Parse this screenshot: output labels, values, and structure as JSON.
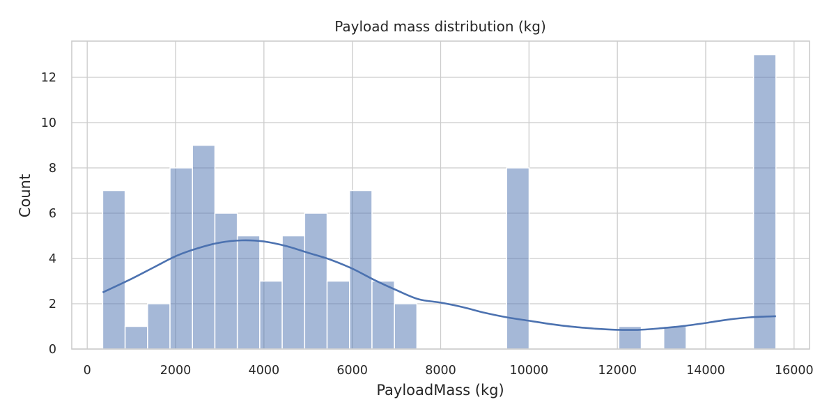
{
  "chart_data": {
    "type": "bar",
    "subtype": "histogram-with-kde",
    "title": "Payload mass distribution (kg)",
    "xlabel": "PayloadMass (kg)",
    "ylabel": "Count",
    "xlim": [
      -350,
      16350
    ],
    "ylim": [
      0,
      13.6
    ],
    "xticks": [
      0,
      2000,
      4000,
      6000,
      8000,
      10000,
      12000,
      14000,
      16000
    ],
    "yticks": [
      0,
      2,
      4,
      6,
      8,
      10,
      12
    ],
    "grid": true,
    "color": "#4c72b0",
    "bin_width": 508,
    "bins": [
      {
        "x0": 350,
        "x1": 858,
        "count": 7
      },
      {
        "x0": 858,
        "x1": 1366,
        "count": 1
      },
      {
        "x0": 1366,
        "x1": 1874,
        "count": 2
      },
      {
        "x0": 1874,
        "x1": 2382,
        "count": 8
      },
      {
        "x0": 2382,
        "x1": 2890,
        "count": 9
      },
      {
        "x0": 2890,
        "x1": 3398,
        "count": 6
      },
      {
        "x0": 3398,
        "x1": 3906,
        "count": 5
      },
      {
        "x0": 3906,
        "x1": 4414,
        "count": 3
      },
      {
        "x0": 4414,
        "x1": 4922,
        "count": 5
      },
      {
        "x0": 4922,
        "x1": 5430,
        "count": 6
      },
      {
        "x0": 5430,
        "x1": 5938,
        "count": 3
      },
      {
        "x0": 5938,
        "x1": 6446,
        "count": 7
      },
      {
        "x0": 6446,
        "x1": 6954,
        "count": 3
      },
      {
        "x0": 6954,
        "x1": 7462,
        "count": 2
      },
      {
        "x0": 7462,
        "x1": 7970,
        "count": 0
      },
      {
        "x0": 7970,
        "x1": 8478,
        "count": 0
      },
      {
        "x0": 8478,
        "x1": 8986,
        "count": 0
      },
      {
        "x0": 8986,
        "x1": 9494,
        "count": 0
      },
      {
        "x0": 9494,
        "x1": 10002,
        "count": 8
      },
      {
        "x0": 10002,
        "x1": 10510,
        "count": 0
      },
      {
        "x0": 10510,
        "x1": 11018,
        "count": 0
      },
      {
        "x0": 11018,
        "x1": 11526,
        "count": 0
      },
      {
        "x0": 11526,
        "x1": 12034,
        "count": 0
      },
      {
        "x0": 12034,
        "x1": 12542,
        "count": 1
      },
      {
        "x0": 12542,
        "x1": 13050,
        "count": 0
      },
      {
        "x0": 13050,
        "x1": 13558,
        "count": 1
      },
      {
        "x0": 13558,
        "x1": 14066,
        "count": 0
      },
      {
        "x0": 14066,
        "x1": 14574,
        "count": 0
      },
      {
        "x0": 14574,
        "x1": 15082,
        "count": 0
      },
      {
        "x0": 15082,
        "x1": 15590,
        "count": 13
      }
    ],
    "kde": {
      "x": [
        350,
        1000,
        1500,
        2000,
        2500,
        3000,
        3500,
        4000,
        4500,
        5000,
        5500,
        6000,
        6500,
        7000,
        7500,
        8000,
        8500,
        9000,
        9500,
        10000,
        10500,
        11000,
        11500,
        12000,
        12500,
        13000,
        13500,
        14000,
        14500,
        15000,
        15590
      ],
      "y": [
        2.5,
        3.1,
        3.6,
        4.1,
        4.45,
        4.7,
        4.8,
        4.75,
        4.55,
        4.25,
        3.95,
        3.55,
        3.05,
        2.6,
        2.2,
        2.05,
        1.85,
        1.6,
        1.4,
        1.25,
        1.1,
        0.98,
        0.9,
        0.85,
        0.85,
        0.92,
        1.02,
        1.15,
        1.3,
        1.4,
        1.45
      ]
    }
  }
}
